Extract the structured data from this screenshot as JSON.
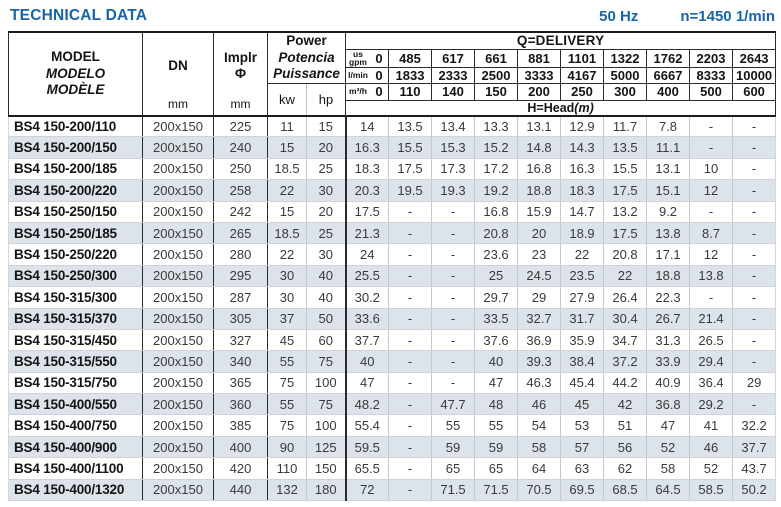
{
  "title": "TECHNICAL DATA",
  "frequency": "50 Hz",
  "speed": "n=1450 1/min",
  "colors": {
    "accent_blue": "#1565a9",
    "row_stripe": "#dce3ea"
  },
  "header": {
    "model": [
      "MODEL",
      "MODELO",
      "MODÈLE"
    ],
    "dn_label": "DN",
    "dn_unit": "mm",
    "impeller_label": "Implr",
    "impeller_symbol": "Φ",
    "impeller_unit": "mm",
    "power": [
      "Power",
      "Potencia",
      "Puissance"
    ],
    "power_units": [
      "kw",
      "hp"
    ],
    "delivery_title": "Q=DELIVERY",
    "delivery_rows": [
      {
        "unit": "us gpm",
        "values": [
          "0",
          "485",
          "617",
          "661",
          "881",
          "1101",
          "1322",
          "1762",
          "2203",
          "2643"
        ]
      },
      {
        "unit": "l/min",
        "values": [
          "0",
          "1833",
          "2333",
          "2500",
          "3333",
          "4167",
          "5000",
          "6667",
          "8333",
          "10000"
        ]
      },
      {
        "unit": "m³/h",
        "values": [
          "0",
          "110",
          "140",
          "150",
          "200",
          "250",
          "300",
          "400",
          "500",
          "600"
        ]
      }
    ],
    "head_label": "H=Head",
    "head_unit": "(m)"
  },
  "rows": [
    {
      "model": "BS4 150-200/110",
      "dn": "200x150",
      "impeller": "225",
      "kw": "11",
      "hp": "15",
      "heads": [
        "14",
        "13.5",
        "13.4",
        "13.3",
        "13.1",
        "12.9",
        "11.7",
        "7.8",
        "-",
        "-"
      ]
    },
    {
      "model": "BS4 150-200/150",
      "dn": "200x150",
      "impeller": "240",
      "kw": "15",
      "hp": "20",
      "heads": [
        "16.3",
        "15.5",
        "15.3",
        "15.2",
        "14.8",
        "14.3",
        "13.5",
        "11.1",
        "-",
        "-"
      ]
    },
    {
      "model": "BS4 150-200/185",
      "dn": "200x150",
      "impeller": "250",
      "kw": "18.5",
      "hp": "25",
      "heads": [
        "18.3",
        "17.5",
        "17.3",
        "17.2",
        "16.8",
        "16.3",
        "15.5",
        "13.1",
        "10",
        "-"
      ]
    },
    {
      "model": "BS4 150-200/220",
      "dn": "200x150",
      "impeller": "258",
      "kw": "22",
      "hp": "30",
      "heads": [
        "20.3",
        "19.5",
        "19.3",
        "19.2",
        "18.8",
        "18.3",
        "17.5",
        "15.1",
        "12",
        "-"
      ]
    },
    {
      "model": "BS4 150-250/150",
      "dn": "200x150",
      "impeller": "242",
      "kw": "15",
      "hp": "20",
      "heads": [
        "17.5",
        "-",
        "-",
        "16.8",
        "15.9",
        "14.7",
        "13.2",
        "9.2",
        "-",
        "-"
      ]
    },
    {
      "model": "BS4 150-250/185",
      "dn": "200x150",
      "impeller": "265",
      "kw": "18.5",
      "hp": "25",
      "heads": [
        "21.3",
        "-",
        "-",
        "20.8",
        "20",
        "18.9",
        "17.5",
        "13.8",
        "8.7",
        "-"
      ]
    },
    {
      "model": "BS4 150-250/220",
      "dn": "200x150",
      "impeller": "280",
      "kw": "22",
      "hp": "30",
      "heads": [
        "24",
        "-",
        "-",
        "23.6",
        "23",
        "22",
        "20.8",
        "17.1",
        "12",
        "-"
      ]
    },
    {
      "model": "BS4 150-250/300",
      "dn": "200x150",
      "impeller": "295",
      "kw": "30",
      "hp": "40",
      "heads": [
        "25.5",
        "-",
        "-",
        "25",
        "24.5",
        "23.5",
        "22",
        "18.8",
        "13.8",
        "-"
      ]
    },
    {
      "model": "BS4 150-315/300",
      "dn": "200x150",
      "impeller": "287",
      "kw": "30",
      "hp": "40",
      "heads": [
        "30.2",
        "-",
        "-",
        "29.7",
        "29",
        "27.9",
        "26.4",
        "22.3",
        "-",
        "-"
      ]
    },
    {
      "model": "BS4 150-315/370",
      "dn": "200x150",
      "impeller": "305",
      "kw": "37",
      "hp": "50",
      "heads": [
        "33.6",
        "-",
        "-",
        "33.5",
        "32.7",
        "31.7",
        "30.4",
        "26.7",
        "21.4",
        "-"
      ]
    },
    {
      "model": "BS4 150-315/450",
      "dn": "200x150",
      "impeller": "327",
      "kw": "45",
      "hp": "60",
      "heads": [
        "37.7",
        "-",
        "-",
        "37.6",
        "36.9",
        "35.9",
        "34.7",
        "31.3",
        "26.5",
        "-"
      ]
    },
    {
      "model": "BS4 150-315/550",
      "dn": "200x150",
      "impeller": "340",
      "kw": "55",
      "hp": "75",
      "heads": [
        "40",
        "-",
        "-",
        "40",
        "39.3",
        "38.4",
        "37.2",
        "33.9",
        "29.4",
        "-"
      ]
    },
    {
      "model": "BS4 150-315/750",
      "dn": "200x150",
      "impeller": "365",
      "kw": "75",
      "hp": "100",
      "heads": [
        "47",
        "-",
        "-",
        "47",
        "46.3",
        "45.4",
        "44.2",
        "40.9",
        "36.4",
        "29"
      ]
    },
    {
      "model": "BS4 150-400/550",
      "dn": "200x150",
      "impeller": "360",
      "kw": "55",
      "hp": "75",
      "heads": [
        "48.2",
        "-",
        "47.7",
        "48",
        "46",
        "45",
        "42",
        "36.8",
        "29.2",
        "-"
      ]
    },
    {
      "model": "BS4 150-400/750",
      "dn": "200x150",
      "impeller": "385",
      "kw": "75",
      "hp": "100",
      "heads": [
        "55.4",
        "-",
        "55",
        "55",
        "54",
        "53",
        "51",
        "47",
        "41",
        "32.2"
      ]
    },
    {
      "model": "BS4 150-400/900",
      "dn": "200x150",
      "impeller": "400",
      "kw": "90",
      "hp": "125",
      "heads": [
        "59.5",
        "-",
        "59",
        "59",
        "58",
        "57",
        "56",
        "52",
        "46",
        "37.7"
      ]
    },
    {
      "model": "BS4 150-400/1100",
      "dn": "200x150",
      "impeller": "420",
      "kw": "110",
      "hp": "150",
      "heads": [
        "65.5",
        "-",
        "65",
        "65",
        "64",
        "63",
        "62",
        "58",
        "52",
        "43.7"
      ]
    },
    {
      "model": "BS4 150-400/1320",
      "dn": "200x150",
      "impeller": "440",
      "kw": "132",
      "hp": "180",
      "heads": [
        "72",
        "-",
        "71.5",
        "71.5",
        "70.5",
        "69.5",
        "68.5",
        "64.5",
        "58.5",
        "50.2"
      ]
    }
  ]
}
